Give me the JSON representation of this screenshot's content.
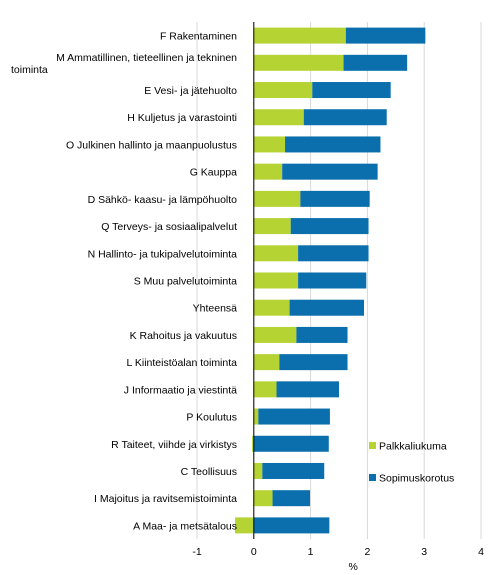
{
  "chart_data": {
    "type": "bar",
    "orientation": "horizontal",
    "stacked": true,
    "categories": [
      "F Rakentaminen",
      "M Ammatillinen, tieteellinen ja tekninen toiminta",
      "E Vesi- ja jätehuolto",
      "H Kuljetus ja varastointi",
      "O Julkinen hallinto ja maanpuolustus",
      "G Kauppa",
      "D Sähkö- kaasu- ja lämpöhuolto",
      "Q Terveys- ja sosiaalipalvelut",
      "N Hallinto- ja tukipalvelutoiminta",
      "S Muu palvelutoiminta",
      "Yhteensä",
      "K Rahoitus ja vakuutus",
      "L Kiinteistöalan toiminta",
      "J Informaatio ja viestintä",
      "P Koulutus",
      "R Taiteet, viihde ja virkistys",
      "C Teollisuus",
      "I Majoitus ja ravitsemistoiminta",
      "A Maa- ja metsätalous"
    ],
    "series": [
      {
        "name": "Palkkaliukuma",
        "color": "#b6d334",
        "values": [
          1.62,
          1.58,
          1.03,
          0.88,
          0.55,
          0.5,
          0.82,
          0.65,
          0.78,
          0.78,
          0.63,
          0.75,
          0.45,
          0.4,
          0.08,
          -0.03,
          0.15,
          0.33,
          -0.33
        ]
      },
      {
        "name": "Sopimuskorotus",
        "color": "#0a6fac",
        "values": [
          1.4,
          1.12,
          1.38,
          1.46,
          1.68,
          1.68,
          1.22,
          1.37,
          1.24,
          1.2,
          1.31,
          0.9,
          1.2,
          1.1,
          1.26,
          1.32,
          1.09,
          0.66,
          1.33
        ]
      }
    ],
    "xlabel": "%",
    "ylabel": "",
    "xlim": [
      -1,
      4
    ],
    "xticks": [
      -1,
      0,
      1,
      2,
      3,
      4
    ],
    "grid": true,
    "legend_position": "bottom-right"
  }
}
